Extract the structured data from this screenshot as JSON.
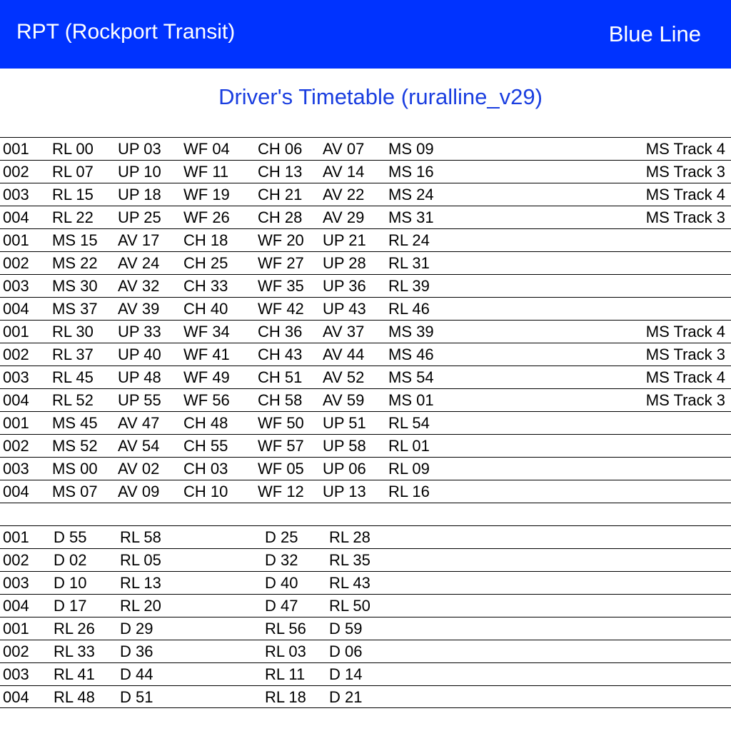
{
  "header": {
    "operator": "RPT (Rockport Transit)",
    "line": "Blue Line"
  },
  "subtitle": "Driver's Timetable (ruralline_v29)",
  "colors": {
    "header_bg": "#0033ff",
    "header_text": "#ffffff",
    "subtitle_text": "#1a3ee0"
  },
  "rows": [
    {
      "id": "001",
      "stops": [
        "RL 00",
        "UP 03",
        "WF 04",
        "CH 06",
        "AV 07",
        "MS 09"
      ],
      "track": "MS Track 4"
    },
    {
      "id": "002",
      "stops": [
        "RL 07",
        "UP 10",
        "WF 11",
        "CH 13",
        "AV 14",
        "MS 16"
      ],
      "track": "MS Track 3"
    },
    {
      "id": "003",
      "stops": [
        "RL 15",
        "UP 18",
        "WF 19",
        "CH 21",
        "AV 22",
        "MS 24"
      ],
      "track": "MS Track 4"
    },
    {
      "id": "004",
      "stops": [
        "RL 22",
        "UP 25",
        "WF 26",
        "CH 28",
        "AV 29",
        "MS 31"
      ],
      "track": "MS Track 3"
    },
    {
      "id": "001",
      "stops": [
        "MS 15",
        "AV 17",
        "CH 18",
        "WF 20",
        "UP 21",
        "RL 24"
      ],
      "track": ""
    },
    {
      "id": "002",
      "stops": [
        "MS 22",
        "AV 24",
        "CH 25",
        "WF 27",
        "UP 28",
        "RL 31"
      ],
      "track": ""
    },
    {
      "id": "003",
      "stops": [
        "MS 30",
        "AV 32",
        "CH 33",
        "WF 35",
        "UP 36",
        "RL 39"
      ],
      "track": ""
    },
    {
      "id": "004",
      "stops": [
        "MS 37",
        "AV 39",
        "CH 40",
        "WF 42",
        "UP 43",
        "RL 46"
      ],
      "track": ""
    },
    {
      "id": "001",
      "stops": [
        "RL 30",
        "UP 33",
        "WF 34",
        "CH 36",
        "AV 37",
        "MS 39"
      ],
      "track": "MS Track 4"
    },
    {
      "id": "002",
      "stops": [
        "RL 37",
        "UP 40",
        "WF 41",
        "CH 43",
        "AV 44",
        "MS 46"
      ],
      "track": "MS Track 3"
    },
    {
      "id": "003",
      "stops": [
        "RL 45",
        "UP 48",
        "WF 49",
        "CH 51",
        "AV 52",
        "MS 54"
      ],
      "track": "MS Track 4"
    },
    {
      "id": "004",
      "stops": [
        "RL 52",
        "UP 55",
        "WF 56",
        "CH 58",
        "AV 59",
        "MS 01"
      ],
      "track": "MS Track 3"
    },
    {
      "id": "001",
      "stops": [
        "MS 45",
        "AV 47",
        "CH 48",
        "WF 50",
        "UP 51",
        "RL 54"
      ],
      "track": ""
    },
    {
      "id": "002",
      "stops": [
        "MS 52",
        "AV 54",
        "CH 55",
        "WF 57",
        "UP 58",
        "RL 01"
      ],
      "track": ""
    },
    {
      "id": "003",
      "stops": [
        "MS 00",
        "AV 02",
        "CH 03",
        "WF 05",
        "UP 06",
        "RL 09"
      ],
      "track": ""
    },
    {
      "id": "004",
      "stops": [
        "MS 07",
        "AV 09",
        "CH 10",
        "WF 12",
        "UP 13",
        "RL 16"
      ],
      "track": ""
    }
  ],
  "depot_rows": [
    {
      "id": "001",
      "stops": [
        "D 55",
        "RL 58",
        "D 25",
        "RL 28"
      ]
    },
    {
      "id": "002",
      "stops": [
        "D 02",
        "RL 05",
        "D 32",
        "RL 35"
      ]
    },
    {
      "id": "003",
      "stops": [
        "D 10",
        "RL 13",
        "D 40",
        "RL 43"
      ]
    },
    {
      "id": "004",
      "stops": [
        "D 17",
        "RL 20",
        "D 47",
        "RL 50"
      ]
    },
    {
      "id": "001",
      "stops": [
        "RL 26",
        "D 29",
        "RL 56",
        "D 59"
      ]
    },
    {
      "id": "002",
      "stops": [
        "RL 33",
        "D 36",
        "RL 03",
        "D 06"
      ]
    },
    {
      "id": "003",
      "stops": [
        "RL 41",
        "D 44",
        "RL 11",
        "D 14"
      ]
    },
    {
      "id": "004",
      "stops": [
        "RL 48",
        "D 51",
        "RL 18",
        "D 21"
      ]
    }
  ]
}
